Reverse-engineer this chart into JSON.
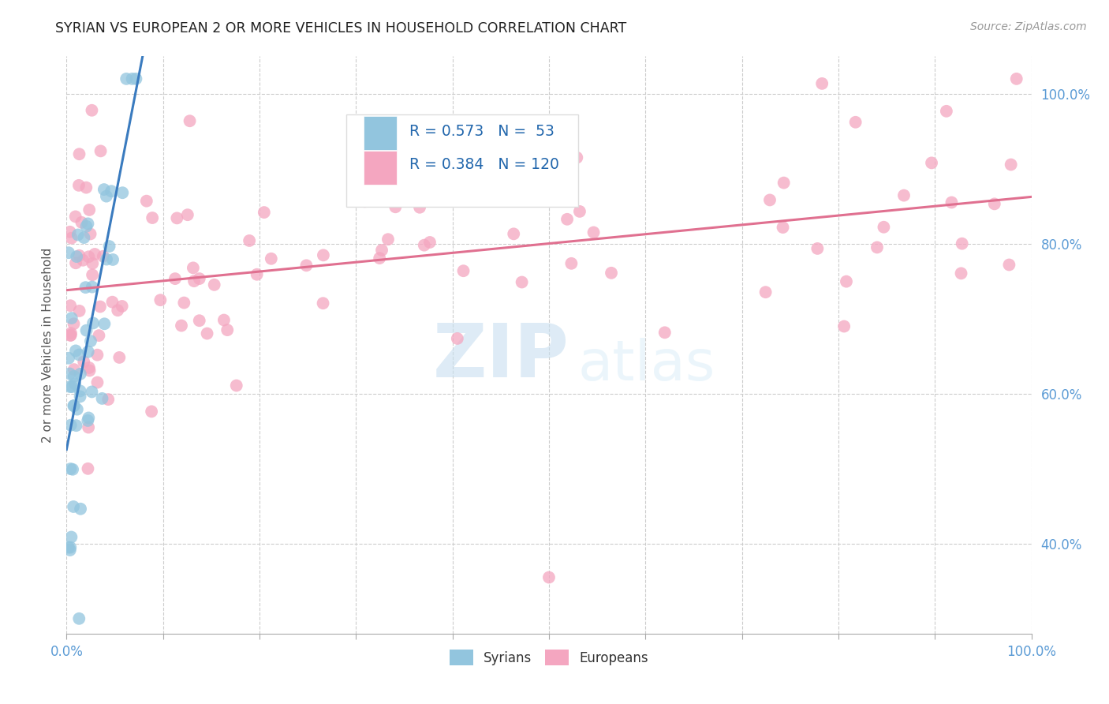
{
  "title": "SYRIAN VS EUROPEAN 2 OR MORE VEHICLES IN HOUSEHOLD CORRELATION CHART",
  "source": "Source: ZipAtlas.com",
  "ylabel": "2 or more Vehicles in Household",
  "R_syrian": 0.573,
  "N_syrian": 53,
  "R_european": 0.384,
  "N_european": 120,
  "syrian_color": "#92c5de",
  "european_color": "#f4a6c0",
  "syrian_line_color": "#3a7bbf",
  "european_line_color": "#e07090",
  "watermark_zip": "ZIP",
  "watermark_atlas": "atlas",
  "xlim": [
    0.0,
    1.0
  ],
  "ylim": [
    0.28,
    1.05
  ],
  "yticks": [
    0.4,
    0.6,
    0.8,
    1.0
  ],
  "ytick_labels": [
    "40.0%",
    "60.0%",
    "80.0%",
    "100.0%"
  ],
  "xtick_left_label": "0.0%",
  "xtick_right_label": "100.0%",
  "legend_label_syrian": "Syrians",
  "legend_label_european": "Europeans"
}
